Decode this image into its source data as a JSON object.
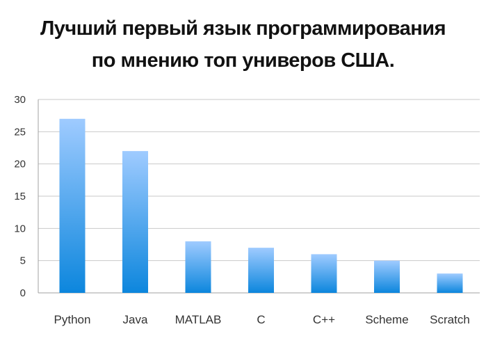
{
  "title": {
    "line1": "Лучший первый язык программирования",
    "line2": "по мнению топ универов США."
  },
  "colors": {
    "bar_top": "#9fcbff",
    "bar_bottom": "#0c86dd",
    "grid": "#c9c9c9",
    "axis": "#a0a0a0"
  },
  "chart_data": {
    "type": "bar",
    "categories": [
      "Python",
      "Java",
      "MATLAB",
      "C",
      "C++",
      "Scheme",
      "Scratch"
    ],
    "values": [
      27,
      22,
      8,
      7,
      6,
      5,
      3
    ],
    "yticks": [
      0,
      5,
      10,
      15,
      20,
      25,
      30
    ],
    "ylim": [
      0,
      30
    ],
    "grid": true,
    "title": "Лучший первый язык программирования по мнению топ универов США.",
    "xlabel": "",
    "ylabel": ""
  }
}
